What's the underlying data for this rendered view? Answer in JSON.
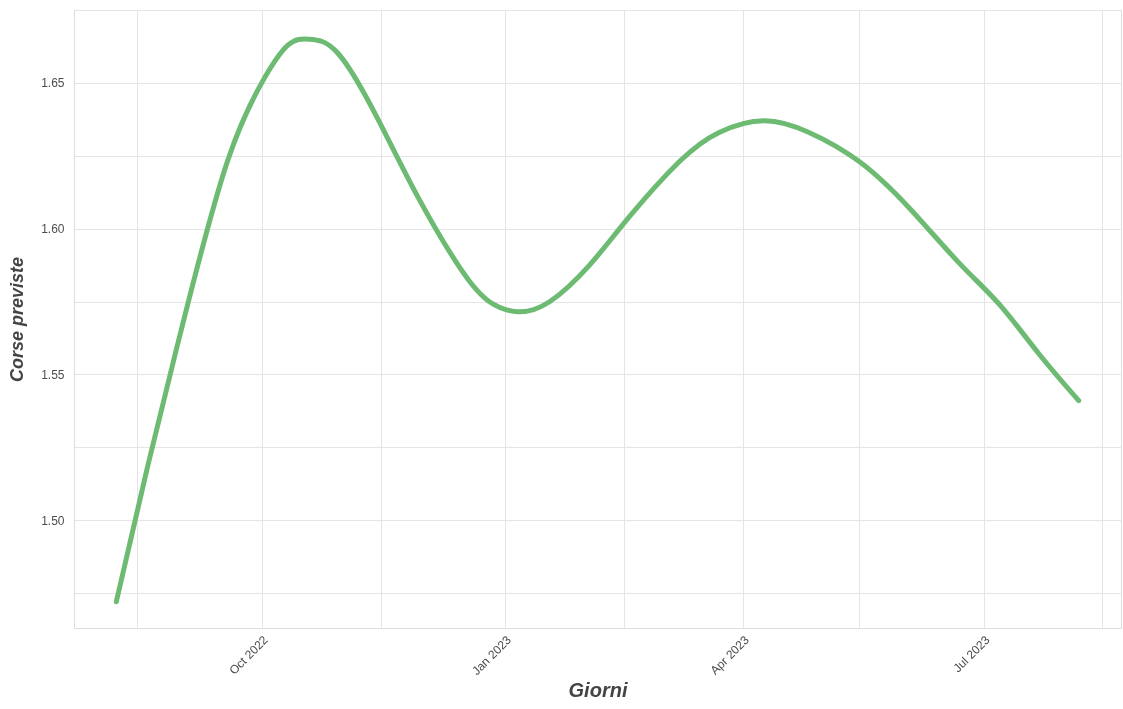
{
  "chart_data": {
    "type": "line",
    "xlabel": "Giorni",
    "ylabel": "Corse previste",
    "x": [
      "2022-08-07",
      "2022-08-19",
      "2022-09-03",
      "2022-09-18",
      "2022-10-01",
      "2022-10-11",
      "2022-10-19",
      "2022-10-30",
      "2022-11-14",
      "2022-11-29",
      "2022-12-15",
      "2022-12-26",
      "2023-01-06",
      "2023-01-18",
      "2023-02-02",
      "2023-02-17",
      "2023-03-08",
      "2023-03-23",
      "2023-04-09",
      "2023-04-26",
      "2023-05-15",
      "2023-06-03",
      "2023-06-22",
      "2023-07-07",
      "2023-07-22",
      "2023-08-06"
    ],
    "series": [
      {
        "color": "#6dbb73",
        "values": [
          1.472,
          1.519,
          1.574,
          1.623,
          1.65,
          1.663,
          1.665,
          1.66,
          1.6375,
          1.611,
          1.5865,
          1.575,
          1.5715,
          1.575,
          1.5875,
          1.604,
          1.623,
          1.633,
          1.637,
          1.633,
          1.623,
          1.607,
          1.588,
          1.574,
          1.557,
          1.541
        ]
      }
    ],
    "xlim": [
      "2022-07-22",
      "2023-08-22"
    ],
    "xticks": [
      {
        "value": "2022-08-15",
        "label": null
      },
      {
        "value": "2022-10-01",
        "label": "Oct 2022"
      },
      {
        "value": "2022-11-15",
        "label": null
      },
      {
        "value": "2023-01-01",
        "label": "Jan 2023"
      },
      {
        "value": "2023-02-15",
        "label": null
      },
      {
        "value": "2023-04-01",
        "label": "Apr 2023"
      },
      {
        "value": "2023-05-15",
        "label": null
      },
      {
        "value": "2023-07-01",
        "label": "Jul 2023"
      },
      {
        "value": "2023-08-15",
        "label": null
      }
    ],
    "ylim": [
      1.463,
      1.675
    ],
    "yticks": [
      {
        "value": 1.475,
        "label": null
      },
      {
        "value": 1.5,
        "label": "1.50"
      },
      {
        "value": 1.525,
        "label": null
      },
      {
        "value": 1.55,
        "label": "1.55"
      },
      {
        "value": 1.575,
        "label": null
      },
      {
        "value": 1.6,
        "label": "1.60"
      },
      {
        "value": 1.625,
        "label": null
      },
      {
        "value": 1.65,
        "label": "1.65"
      },
      {
        "value": 1.675,
        "label": null
      }
    ],
    "grid": true,
    "marker": "none",
    "line_style": "solid"
  }
}
